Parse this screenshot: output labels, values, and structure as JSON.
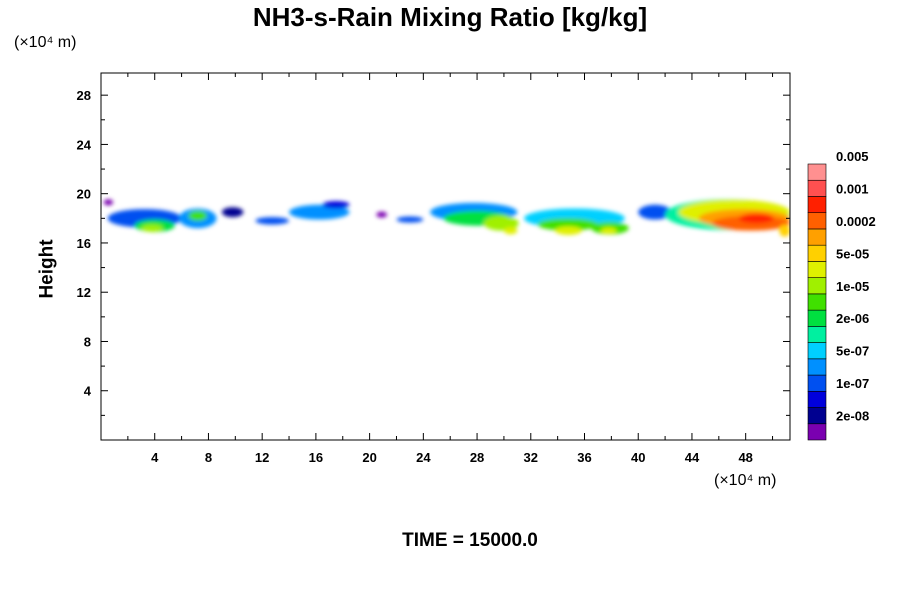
{
  "chart_data": {
    "type": "heatmap",
    "title": "NH3-s-Rain Mixing Ratio [kg/kg]",
    "ylabel": "Height",
    "x_unit": "(×10⁴ m)",
    "y_unit": "(×10⁴ m)",
    "time_label": "TIME = 15000.0",
    "xlim": [
      0,
      51.3
    ],
    "ylim": [
      0,
      29.8
    ],
    "x_ticks": [
      "4",
      "8",
      "12",
      "16",
      "20",
      "24",
      "28",
      "32",
      "36",
      "40",
      "44",
      "48"
    ],
    "y_ticks": [
      "4",
      "8",
      "12",
      "16",
      "20",
      "24",
      "28"
    ],
    "colorbar": {
      "colors": [
        "#7a00b0",
        "#000090",
        "#0000dc",
        "#0050f0",
        "#0090ff",
        "#00d0ff",
        "#00f0a0",
        "#00e040",
        "#40e000",
        "#a0f000",
        "#e0f000",
        "#ffd000",
        "#ffa000",
        "#ff6000",
        "#ff2000",
        "#ff5050",
        "#ff9090"
      ],
      "labels": [
        "2e-08",
        "1e-07",
        "5e-07",
        "2e-06",
        "1e-05",
        "5e-05",
        "0.0002",
        "0.001",
        "0.005"
      ]
    },
    "cloud_layer": {
      "bottom_km_approx": 16.5,
      "top_km_approx": 20,
      "note_level_indices": "0=lowest colour"
    },
    "blobs": [
      {
        "x": 0.2,
        "y": 19.3,
        "w": 0.7,
        "h": 0.5,
        "level": 0
      },
      {
        "x": 0.3,
        "y": 17.0,
        "w": 19.3,
        "h": 0,
        "level": 0
      },
      {
        "x": 0.5,
        "y": 18.0,
        "w": 5.5,
        "h": 1.5,
        "level": 3
      },
      {
        "x": 2.5,
        "y": 17.4,
        "w": 3.0,
        "h": 1.0,
        "level": 7
      },
      {
        "x": 3.0,
        "y": 17.2,
        "w": 1.6,
        "h": 0.6,
        "level": 9
      },
      {
        "x": 5.8,
        "y": 18.0,
        "w": 2.8,
        "h": 1.6,
        "level": 4
      },
      {
        "x": 6.5,
        "y": 18.2,
        "w": 1.4,
        "h": 0.8,
        "level": 8
      },
      {
        "x": 9.0,
        "y": 18.5,
        "w": 1.6,
        "h": 0.8,
        "level": 1
      },
      {
        "x": 11.5,
        "y": 17.8,
        "w": 2.5,
        "h": 0.6,
        "level": 3
      },
      {
        "x": 14.0,
        "y": 18.5,
        "w": 4.5,
        "h": 1.2,
        "level": 4
      },
      {
        "x": 16.5,
        "y": 19.1,
        "w": 2.0,
        "h": 0.6,
        "level": 2
      },
      {
        "x": 20.5,
        "y": 18.3,
        "w": 0.8,
        "h": 0.3,
        "level": 0
      },
      {
        "x": 22.0,
        "y": 17.9,
        "w": 2.0,
        "h": 0.5,
        "level": 3
      },
      {
        "x": 24.5,
        "y": 18.5,
        "w": 6.5,
        "h": 1.5,
        "level": 4
      },
      {
        "x": 25.5,
        "y": 18.0,
        "w": 5.0,
        "h": 1.2,
        "level": 7
      },
      {
        "x": 28.5,
        "y": 17.6,
        "w": 2.6,
        "h": 1.2,
        "level": 9
      },
      {
        "x": 30.0,
        "y": 17.0,
        "w": 1.0,
        "h": 0.6,
        "level": 10
      },
      {
        "x": 31.5,
        "y": 18.0,
        "w": 7.5,
        "h": 1.6,
        "level": 5
      },
      {
        "x": 32.5,
        "y": 17.5,
        "w": 4.5,
        "h": 1.0,
        "level": 8
      },
      {
        "x": 33.8,
        "y": 17.0,
        "w": 2.0,
        "h": 0.7,
        "level": 10
      },
      {
        "x": 36.5,
        "y": 17.2,
        "w": 2.8,
        "h": 1.0,
        "level": 8
      },
      {
        "x": 37.2,
        "y": 17.0,
        "w": 1.2,
        "h": 0.5,
        "level": 10
      },
      {
        "x": 40.0,
        "y": 18.5,
        "w": 2.5,
        "h": 1.2,
        "level": 3
      },
      {
        "x": 42.0,
        "y": 18.3,
        "w": 9.3,
        "h": 2.5,
        "level": 6
      },
      {
        "x": 43.0,
        "y": 18.5,
        "w": 8.3,
        "h": 2.0,
        "level": 10
      },
      {
        "x": 44.5,
        "y": 18.0,
        "w": 6.8,
        "h": 1.5,
        "level": 12
      },
      {
        "x": 45.5,
        "y": 17.6,
        "w": 5.8,
        "h": 1.2,
        "level": 13
      },
      {
        "x": 47.5,
        "y": 18.0,
        "w": 2.6,
        "h": 0.8,
        "level": 14
      },
      {
        "x": 50.5,
        "y": 17.0,
        "w": 0.8,
        "h": 1.0,
        "level": 11
      }
    ]
  }
}
